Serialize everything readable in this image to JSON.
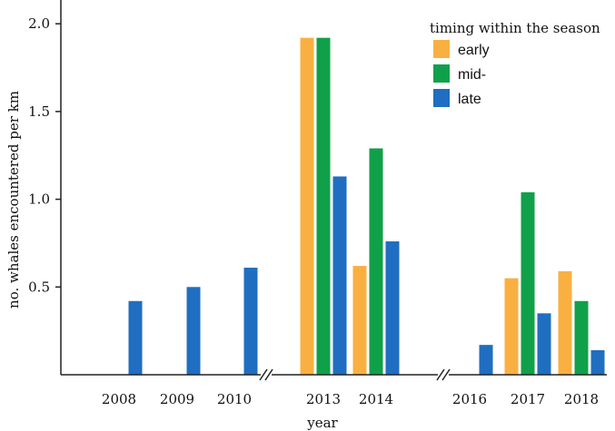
{
  "chart_data": {
    "type": "bar",
    "ylabel": "no. whales encountered per km",
    "xlabel": "year",
    "ylim": [
      0,
      2.1
    ],
    "yticks": [
      0.5,
      1.0,
      1.5,
      2.0
    ],
    "ytick_labels": [
      "0.5",
      "1.0",
      "1.5",
      "2.0"
    ],
    "grid": false,
    "axis_breaks": [
      "between 2010 and 2013",
      "between 2014 and 2016"
    ],
    "legend": {
      "title": "timing within the season",
      "placement": "top-right"
    },
    "categories": [
      "2008",
      "2009",
      "2010",
      "2013",
      "2014",
      "2016",
      "2017",
      "2018"
    ],
    "series": [
      {
        "name": "early",
        "color": "#F9B041",
        "values": [
          null,
          null,
          null,
          1.92,
          0.62,
          null,
          0.55,
          0.59
        ]
      },
      {
        "name": "mid-",
        "color": "#10A04A",
        "values": [
          null,
          null,
          null,
          1.92,
          1.29,
          null,
          1.04,
          0.42
        ]
      },
      {
        "name": "late",
        "color": "#1F6EC1",
        "values": [
          0.42,
          0.5,
          0.61,
          1.13,
          0.76,
          0.17,
          0.35,
          0.14
        ]
      }
    ]
  }
}
